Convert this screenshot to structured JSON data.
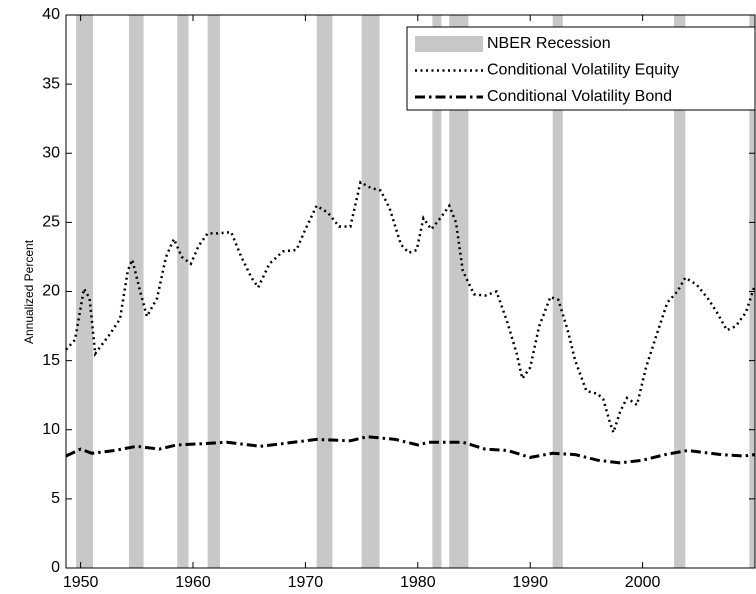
{
  "chart_data": {
    "type": "line",
    "ylabel": "Annualized Percent",
    "xlim": [
      1948.7,
      2010
    ],
    "ylim": [
      0,
      40
    ],
    "xticks": [
      1950,
      1960,
      1970,
      1980,
      1990,
      2000
    ],
    "yticks": [
      0,
      5,
      10,
      15,
      20,
      25,
      30,
      35,
      40
    ],
    "legend": "upper right",
    "recessions": {
      "name": "NBER Recession",
      "color": "#c8c8c8",
      "periods": [
        [
          1949.6,
          1951.1
        ],
        [
          1954.3,
          1955.6
        ],
        [
          1958.6,
          1959.6
        ],
        [
          1961.3,
          1962.4
        ],
        [
          1971.0,
          1972.4
        ],
        [
          1975.0,
          1976.6
        ],
        [
          1981.3,
          1982.1
        ],
        [
          1982.8,
          1984.5
        ],
        [
          1992.0,
          1992.9
        ],
        [
          2002.8,
          2003.8
        ],
        [
          2009.5,
          2010
        ]
      ]
    },
    "series": [
      {
        "name": "Conditional Volatility Equity",
        "color": "#000000",
        "style": "dotted",
        "x": [
          1948.7,
          1949.5,
          1950.3,
          1950.8,
          1951.3,
          1952.5,
          1953.5,
          1954.2,
          1954.6,
          1955.3,
          1955.9,
          1956.8,
          1957.6,
          1958.3,
          1959,
          1959.8,
          1960.5,
          1961.3,
          1962.2,
          1963.4,
          1964.3,
          1965.2,
          1965.8,
          1966.8,
          1968,
          1969.2,
          1970,
          1971,
          1972,
          1973,
          1974,
          1974.9,
          1975.8,
          1976.7,
          1977.5,
          1978.5,
          1979.2,
          1979.9,
          1980.5,
          1981.2,
          1982,
          1982.8,
          1983.4,
          1984,
          1985,
          1986,
          1987,
          1988,
          1988.8,
          1989.3,
          1990,
          1990.8,
          1991.8,
          1992.5,
          1993.3,
          1994,
          1995,
          1996,
          1996.5,
          1997.1,
          1997.4,
          1998,
          1998.6,
          1999.5,
          2000.3,
          2001.3,
          2002.2,
          2003.1,
          2003.8,
          2004.8,
          2005.8,
          2006.6,
          2007.5,
          2008.3,
          2009.2,
          2010
        ],
        "values": [
          15.8,
          16.5,
          20.2,
          19.5,
          15.5,
          16.8,
          18,
          21.5,
          22.3,
          20,
          18.2,
          19.5,
          22.5,
          23.8,
          22.5,
          22,
          23.3,
          24.2,
          24.2,
          24.3,
          22.5,
          21,
          20.3,
          22,
          22.9,
          23,
          24.5,
          26.2,
          25.7,
          24.7,
          24.7,
          27.9,
          27.5,
          27.3,
          26,
          23.4,
          22.8,
          23,
          25.3,
          24.5,
          25.3,
          26.2,
          25,
          21.5,
          19.8,
          19.7,
          20,
          17.7,
          15.5,
          13.7,
          14.5,
          17.5,
          19.6,
          19.4,
          17.3,
          15,
          12.8,
          12.6,
          12.2,
          10.5,
          9.8,
          11.3,
          12.3,
          11.8,
          14.5,
          17,
          19.2,
          20,
          21,
          20.5,
          19.5,
          18.5,
          17.2,
          17.5,
          18.5,
          20.5
        ]
      },
      {
        "name": "Conditional Volatility Bond",
        "color": "#000000",
        "style": "dashdot",
        "x": [
          1948.7,
          1950,
          1951,
          1953,
          1955,
          1957,
          1958.5,
          1961,
          1963,
          1966,
          1968,
          1971,
          1974,
          1975.5,
          1978,
          1980,
          1981,
          1984,
          1986,
          1988,
          1990,
          1992,
          1994,
          1996,
          1998,
          2000,
          2002,
          2004,
          2007,
          2009,
          2010
        ],
        "values": [
          8.1,
          8.6,
          8.3,
          8.5,
          8.8,
          8.6,
          8.9,
          9.0,
          9.1,
          8.8,
          9.0,
          9.3,
          9.2,
          9.5,
          9.3,
          8.9,
          9.1,
          9.1,
          8.6,
          8.5,
          8.0,
          8.3,
          8.2,
          7.8,
          7.6,
          7.8,
          8.2,
          8.5,
          8.2,
          8.1,
          8.2
        ]
      }
    ]
  }
}
